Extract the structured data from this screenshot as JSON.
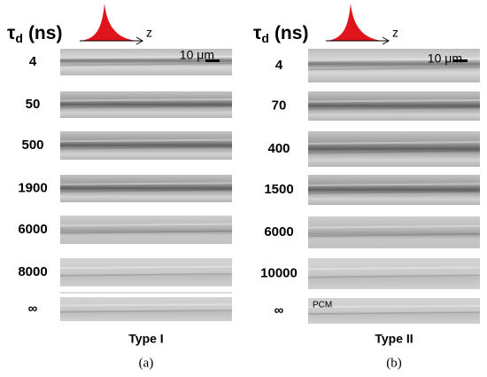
{
  "panels": [
    {
      "header": {
        "symbol": "τ",
        "subscript": "d",
        "unit": "(ns)"
      },
      "axis_label": "z",
      "scale_bar": "10 μm",
      "rows": [
        "4",
        "50",
        "500",
        "1900",
        "6000",
        "8000",
        "∞"
      ],
      "type_label": "Type I",
      "caption": "(a)"
    },
    {
      "header": {
        "symbol": "τ",
        "subscript": "d",
        "unit": "(ns)"
      },
      "axis_label": "z",
      "scale_bar": "10 μm",
      "rows": [
        "4",
        "70",
        "400",
        "1500",
        "6000",
        "10000",
        "∞"
      ],
      "image_label": "PCM",
      "type_label": "Type II",
      "caption": "(b)"
    }
  ]
}
